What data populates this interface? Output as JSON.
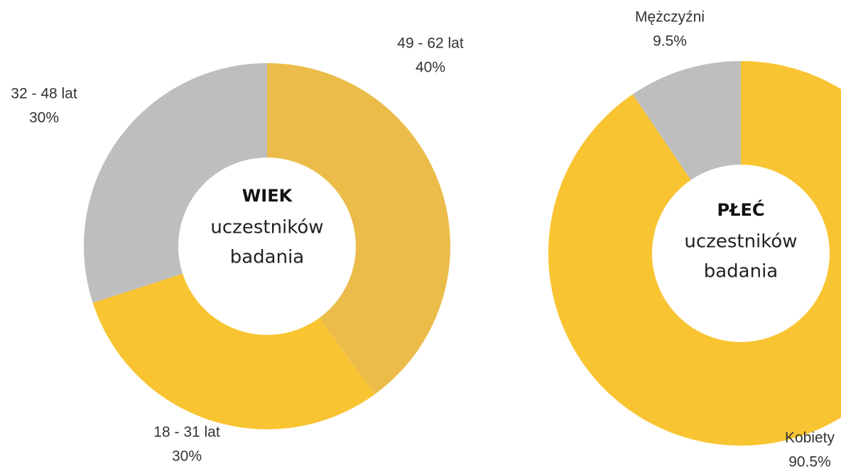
{
  "chart_data": [
    {
      "type": "donut",
      "center_title": "WIEK",
      "center_text": [
        "uczestników",
        "badania"
      ],
      "categories": [
        "49 - 62 lat",
        "18 - 31 lat",
        "32 - 48 lat"
      ],
      "values": [
        40,
        30,
        30
      ],
      "value_labels": [
        "40%",
        "30%",
        "30%"
      ],
      "colors": [
        "#ebbc4a",
        "#f9c432",
        "#bebebe"
      ]
    },
    {
      "type": "donut",
      "center_title": "PŁEĆ",
      "center_text": [
        "uczestników",
        "badania"
      ],
      "categories": [
        "Kobiety",
        "Mężczyźni"
      ],
      "values": [
        90.5,
        9.5
      ],
      "value_labels": [
        "90.5%",
        "9.5%"
      ],
      "colors": [
        "#f9c432",
        "#bebebe"
      ]
    }
  ]
}
